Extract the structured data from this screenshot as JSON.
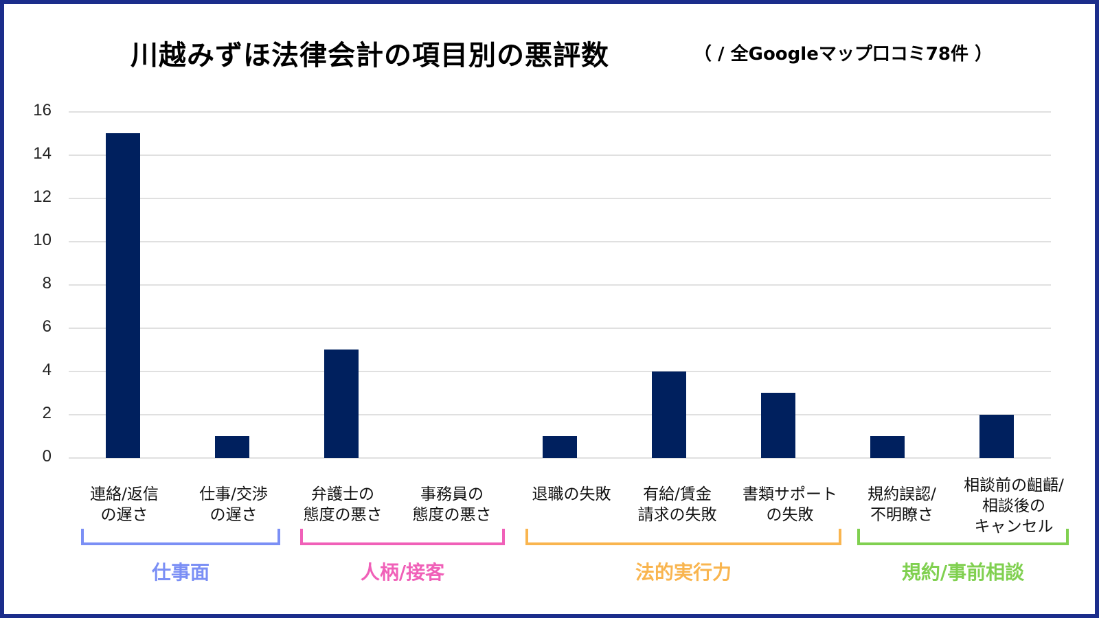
{
  "title": "川越みずほ法律会計の項目別の悪評数",
  "subtitle": "（ / 全Googleマップ口コミ78件 ）",
  "colors": {
    "frame": "#1b2d8b",
    "bar": "#00205e",
    "grid": "#e0e0e0",
    "group_work": "#7b8ff5",
    "group_personality": "#f060b8",
    "group_legal": "#f9b54f",
    "group_contract": "#80d050"
  },
  "chart_data": {
    "type": "bar",
    "title": "川越みずほ法律会計の項目別の悪評数",
    "subtitle": "（ / 全Googleマップ口コミ78件 ）",
    "xlabel": "",
    "ylabel": "",
    "ylim": [
      0,
      16
    ],
    "yticks": [
      0,
      2,
      4,
      6,
      8,
      10,
      12,
      14,
      16
    ],
    "grid": true,
    "legend": "none",
    "categories": [
      "連絡/返信の遅さ",
      "仕事/交渉の遅さ",
      "弁護士の態度の悪さ",
      "事務員の態度の悪さ",
      "退職の失敗",
      "有給/賃金請求の失敗",
      "書類サポートの失敗",
      "規約誤認/不明瞭さ",
      "相談前の齟齬/相談後のキャンセル"
    ],
    "values": [
      15,
      1,
      5,
      0,
      1,
      4,
      3,
      1,
      2
    ],
    "groups": [
      {
        "name": "仕事面",
        "categories": [
          0,
          1
        ]
      },
      {
        "name": "人柄/接客",
        "categories": [
          2,
          3
        ]
      },
      {
        "name": "法的実行力",
        "categories": [
          4,
          5,
          6
        ]
      },
      {
        "name": "規約/事前相談",
        "categories": [
          7,
          8
        ]
      }
    ]
  },
  "yaxis": {
    "ticks": [
      "16",
      "14",
      "12",
      "10",
      "8",
      "6",
      "4",
      "2",
      "0"
    ]
  },
  "xaxis": {
    "labels": [
      {
        "line1": "連絡/返信",
        "line2": "の遅さ",
        "line3": ""
      },
      {
        "line1": "仕事/交渉",
        "line2": "の遅さ",
        "line3": ""
      },
      {
        "line1": "弁護士の",
        "line2": "態度の悪さ",
        "line3": ""
      },
      {
        "line1": "事務員の",
        "line2": "態度の悪さ",
        "line3": ""
      },
      {
        "line1": "退職の失敗",
        "line2": "",
        "line3": ""
      },
      {
        "line1": "有給/賃金",
        "line2": "請求の失敗",
        "line3": ""
      },
      {
        "line1": "書類サポート",
        "line2": "の失敗",
        "line3": ""
      },
      {
        "line1": "規約誤認/",
        "line2": "不明瞭さ",
        "line3": ""
      },
      {
        "line1": "相談前の齟齬/",
        "line2": "相談後の",
        "line3": "キャンセル"
      }
    ]
  },
  "groups": [
    {
      "label": "仕事面"
    },
    {
      "label": "人柄/接客"
    },
    {
      "label": "法的実行力"
    },
    {
      "label": "規約/事前相談"
    }
  ]
}
